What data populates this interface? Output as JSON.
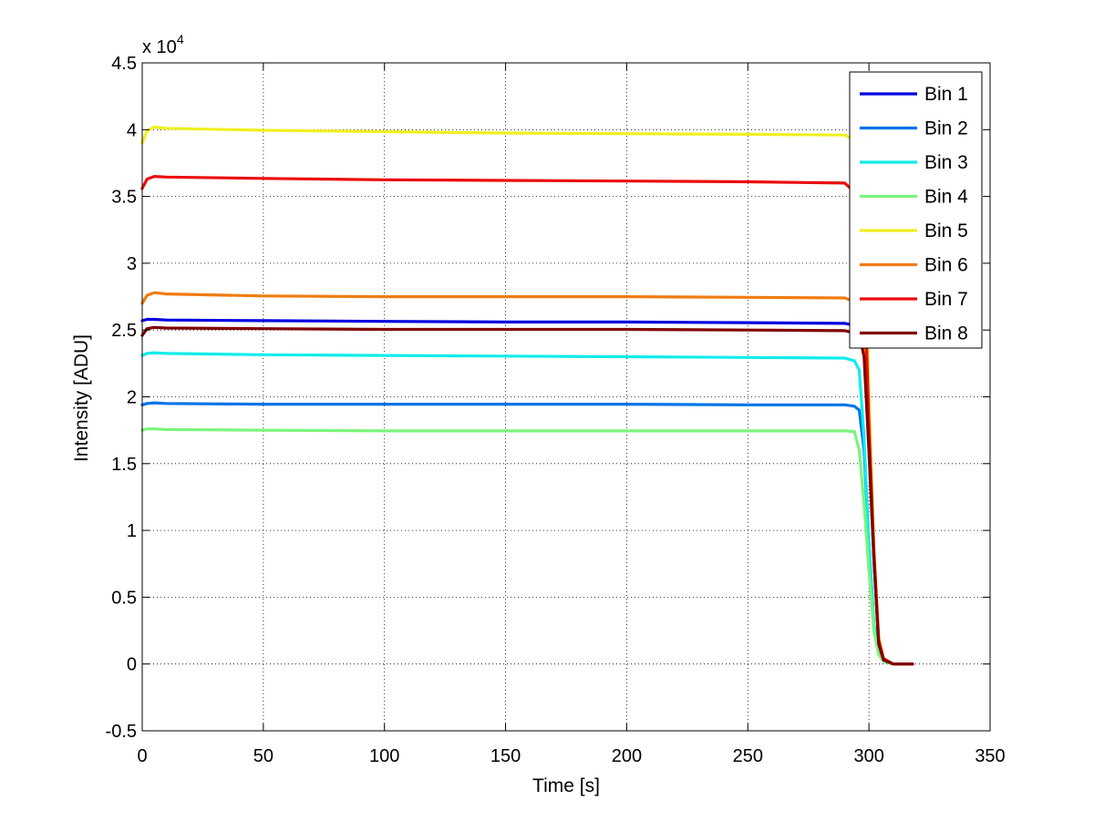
{
  "chart_data": {
    "type": "line",
    "title": "",
    "xlabel": "Time [s]",
    "ylabel": "Intensity [ADU]",
    "xlim": [
      0,
      350
    ],
    "ylim": [
      -0.5,
      4.5
    ],
    "y_scale_label": "x 10",
    "y_scale_exponent": "4",
    "xticks": [
      "0",
      "50",
      "100",
      "150",
      "200",
      "250",
      "300",
      "350"
    ],
    "yticks": [
      "-0.5",
      "0",
      "0.5",
      "1",
      "1.5",
      "2",
      "2.5",
      "3",
      "3.5",
      "4",
      "4.5"
    ],
    "grid": true,
    "legend_position": "top-right",
    "series": [
      {
        "name": "Bin 1",
        "color": "#0000e0",
        "x": [
          0,
          2,
          5,
          10,
          50,
          100,
          150,
          200,
          250,
          290,
          296,
          298,
          300,
          302,
          304,
          306,
          310,
          318
        ],
        "y": [
          2.57,
          2.58,
          2.58,
          2.575,
          2.57,
          2.565,
          2.56,
          2.56,
          2.555,
          2.55,
          2.53,
          2.4,
          1.7,
          0.8,
          0.15,
          0.03,
          0.0,
          0.0
        ]
      },
      {
        "name": "Bin 2",
        "color": "#0074e8",
        "x": [
          0,
          2,
          5,
          10,
          50,
          100,
          150,
          200,
          250,
          290,
          294,
          296,
          298,
          300,
          302,
          304,
          306,
          310,
          318
        ],
        "y": [
          1.94,
          1.95,
          1.955,
          1.95,
          1.945,
          1.945,
          1.945,
          1.945,
          1.94,
          1.94,
          1.93,
          1.9,
          1.6,
          0.9,
          0.3,
          0.08,
          0.02,
          0.0,
          0.0
        ]
      },
      {
        "name": "Bin 3",
        "color": "#10ecec",
        "x": [
          0,
          2,
          5,
          10,
          50,
          100,
          150,
          200,
          250,
          290,
          294,
          296,
          298,
          300,
          302,
          304,
          306,
          310,
          318
        ],
        "y": [
          2.31,
          2.325,
          2.33,
          2.325,
          2.315,
          2.31,
          2.305,
          2.3,
          2.295,
          2.29,
          2.27,
          2.2,
          1.7,
          0.9,
          0.3,
          0.08,
          0.02,
          0.0,
          0.0
        ]
      },
      {
        "name": "Bin 4",
        "color": "#7cf47c",
        "x": [
          0,
          2,
          5,
          10,
          50,
          100,
          150,
          200,
          250,
          290,
          294,
          296,
          298,
          300,
          302,
          304,
          306,
          310,
          318
        ],
        "y": [
          1.75,
          1.76,
          1.76,
          1.755,
          1.75,
          1.745,
          1.745,
          1.745,
          1.745,
          1.745,
          1.74,
          1.6,
          1.2,
          0.7,
          0.25,
          0.07,
          0.02,
          0.0,
          0.0
        ]
      },
      {
        "name": "Bin 5",
        "color": "#f0f020",
        "x": [
          0,
          2,
          5,
          10,
          50,
          100,
          150,
          200,
          250,
          290,
          296,
          298,
          300,
          302,
          304,
          306,
          310,
          318
        ],
        "y": [
          3.9,
          3.99,
          4.02,
          4.01,
          3.995,
          3.985,
          3.975,
          3.97,
          3.965,
          3.96,
          3.9,
          3.4,
          2.0,
          0.9,
          0.2,
          0.04,
          0.0,
          0.0
        ]
      },
      {
        "name": "Bin 6",
        "color": "#f07c10",
        "x": [
          0,
          2,
          5,
          10,
          50,
          100,
          150,
          200,
          250,
          290,
          296,
          298,
          300,
          302,
          304,
          306,
          310,
          318
        ],
        "y": [
          2.7,
          2.76,
          2.78,
          2.77,
          2.755,
          2.75,
          2.75,
          2.75,
          2.745,
          2.74,
          2.7,
          2.4,
          1.6,
          0.8,
          0.18,
          0.04,
          0.0,
          0.0
        ]
      },
      {
        "name": "Bin 7",
        "color": "#ec0c0c",
        "x": [
          0,
          2,
          5,
          10,
          50,
          100,
          150,
          200,
          250,
          290,
          296,
          298,
          300,
          302,
          304,
          306,
          310,
          318
        ],
        "y": [
          3.56,
          3.63,
          3.65,
          3.645,
          3.635,
          3.625,
          3.62,
          3.615,
          3.61,
          3.6,
          3.5,
          3.0,
          1.8,
          0.85,
          0.18,
          0.04,
          0.0,
          0.0
        ]
      },
      {
        "name": "Bin 8",
        "color": "#800000",
        "x": [
          0,
          2,
          5,
          10,
          50,
          100,
          150,
          200,
          250,
          290,
          296,
          298,
          300,
          302,
          304,
          306,
          310,
          318
        ],
        "y": [
          2.46,
          2.51,
          2.52,
          2.515,
          2.51,
          2.505,
          2.505,
          2.505,
          2.5,
          2.495,
          2.47,
          2.3,
          1.6,
          0.8,
          0.15,
          0.03,
          0.0,
          0.0
        ]
      }
    ]
  }
}
